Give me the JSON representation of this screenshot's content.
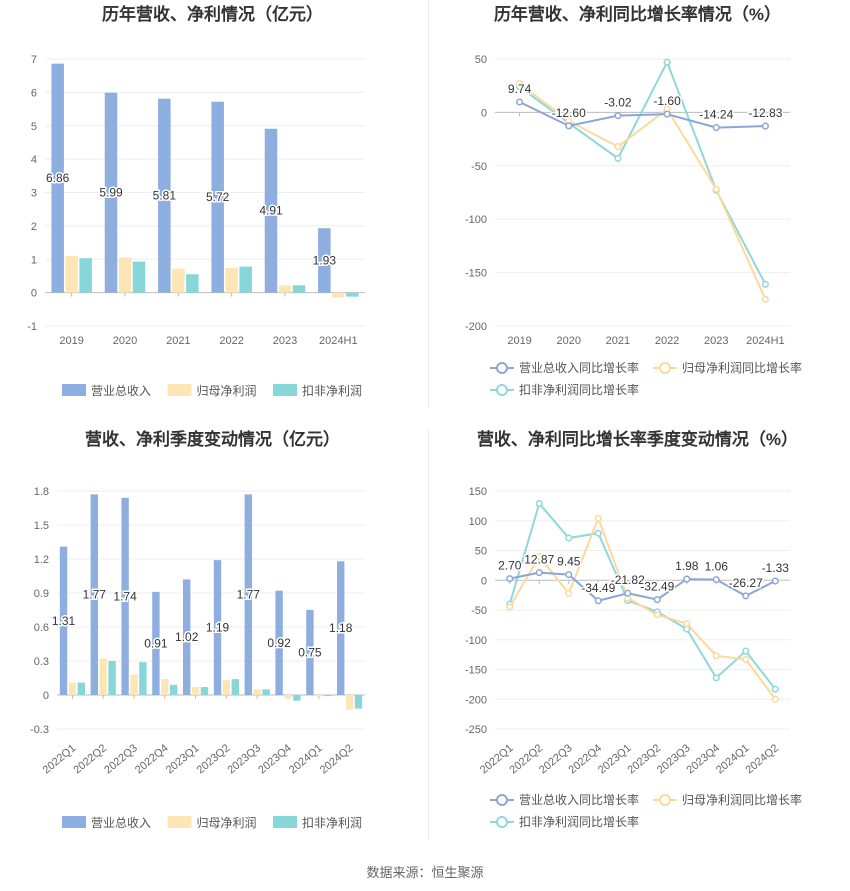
{
  "footer": "数据来源：恒生聚源",
  "colors": {
    "revenue": "#8eaee0",
    "net_profit": "#fde5b6",
    "deducted_profit": "#86d6da",
    "revenue_line": "#8aa6d6",
    "net_profit_line": "#fdd89a",
    "deducted_line": "#8fd7d9"
  },
  "chart_data": [
    {
      "id": "annual_values",
      "type": "bar",
      "title": "历年营收、净利情况（亿元）",
      "categories": [
        "2019",
        "2020",
        "2021",
        "2022",
        "2023",
        "2024H1"
      ],
      "series": [
        {
          "name": "营业总收入",
          "values": [
            6.86,
            5.99,
            5.81,
            5.72,
            4.91,
            1.93
          ]
        },
        {
          "name": "归母净利润",
          "values": [
            1.1,
            1.05,
            0.72,
            0.74,
            0.22,
            -0.15
          ]
        },
        {
          "name": "扣非净利润",
          "values": [
            1.03,
            0.93,
            0.55,
            0.78,
            0.22,
            -0.12
          ]
        }
      ],
      "data_labels": [
        "6.86",
        "5.99",
        "5.81",
        "5.72",
        "4.91",
        "1.93"
      ],
      "y_ticks": [
        "7",
        "6",
        "5",
        "4",
        "3",
        "2",
        "1",
        "0",
        "-1"
      ],
      "ylim": [
        -1,
        7
      ],
      "legend_position": "bottom"
    },
    {
      "id": "annual_growth",
      "type": "line",
      "title": "历年营收、净利同比增长率情况（%）",
      "categories": [
        "2019",
        "2020",
        "2021",
        "2022",
        "2023",
        "2024H1"
      ],
      "series": [
        {
          "name": "营业总收入同比增长率",
          "values": [
            9.74,
            -12.6,
            -3.02,
            -1.6,
            -14.24,
            -12.83
          ]
        },
        {
          "name": "归母净利润同比增长率",
          "values": [
            27,
            -8,
            -32,
            3,
            -72,
            -175
          ]
        },
        {
          "name": "扣非净利润同比增长率",
          "values": [
            24,
            -10,
            -43,
            47,
            -73,
            -161
          ]
        }
      ],
      "data_labels": [
        "9.74",
        "-12.60",
        "-3.02",
        "-1.60",
        "-14.24",
        "-12.83"
      ],
      "y_ticks": [
        "50",
        "0",
        "-50",
        "-100",
        "-150",
        "-200"
      ],
      "ylim": [
        -200,
        50
      ],
      "legend_position": "bottom"
    },
    {
      "id": "quarterly_values",
      "type": "bar",
      "title": "营收、净利季度变动情况（亿元）",
      "categories": [
        "2022Q1",
        "2022Q2",
        "2022Q3",
        "2022Q4",
        "2023Q1",
        "2023Q2",
        "2023Q3",
        "2023Q4",
        "2024Q1",
        "2024Q2"
      ],
      "series": [
        {
          "name": "营业总收入",
          "values": [
            1.31,
            1.77,
            1.74,
            0.91,
            1.02,
            1.19,
            1.77,
            0.92,
            0.75,
            1.18
          ]
        },
        {
          "name": "归母净利润",
          "values": [
            0.11,
            0.32,
            0.18,
            0.14,
            0.07,
            0.13,
            0.05,
            -0.03,
            -0.01,
            -0.13
          ]
        },
        {
          "name": "扣非净利润",
          "values": [
            0.11,
            0.3,
            0.29,
            0.09,
            0.07,
            0.14,
            0.05,
            -0.05,
            -0.01,
            -0.12
          ]
        }
      ],
      "data_labels": [
        "1.31",
        "1.77",
        "1.74",
        "0.91",
        "1.02",
        "1.19",
        "1.77",
        "0.92",
        "0.75",
        "1.18"
      ],
      "y_ticks": [
        "1.8",
        "1.5",
        "1.2",
        "0.9",
        "0.6",
        "0.3",
        "0",
        "-0.3"
      ],
      "ylim": [
        -0.3,
        1.8
      ],
      "legend_position": "bottom"
    },
    {
      "id": "quarterly_growth",
      "type": "line",
      "title": "营收、净利同比增长率季度变动情况（%）",
      "categories": [
        "2022Q1",
        "2022Q2",
        "2022Q3",
        "2022Q4",
        "2023Q1",
        "2023Q2",
        "2023Q3",
        "2023Q4",
        "2024Q1",
        "2024Q2"
      ],
      "series": [
        {
          "name": "营业总收入同比增长率",
          "values": [
            2.7,
            12.87,
            9.45,
            -34.49,
            -21.82,
            -32.49,
            1.98,
            1.06,
            -26.27,
            -1.33
          ]
        },
        {
          "name": "归母净利润同比增长率",
          "values": [
            -45,
            40,
            -22,
            104,
            -30,
            -58,
            -73,
            -127,
            -133,
            -200
          ]
        },
        {
          "name": "扣非净利润同比增长率",
          "values": [
            -40,
            129,
            71,
            79,
            -34,
            -53,
            -82,
            -164,
            -119,
            -183
          ]
        }
      ],
      "data_labels": [
        "2.70",
        "12.87",
        "9.45",
        "-34.49",
        "-21.82",
        "-32.49",
        "1.98",
        "1.06",
        "-26.27",
        "-1.33"
      ],
      "y_ticks": [
        "150",
        "100",
        "50",
        "0",
        "-50",
        "-100",
        "-150",
        "-200",
        "-250"
      ],
      "ylim": [
        -250,
        150
      ],
      "legend_position": "bottom"
    }
  ]
}
